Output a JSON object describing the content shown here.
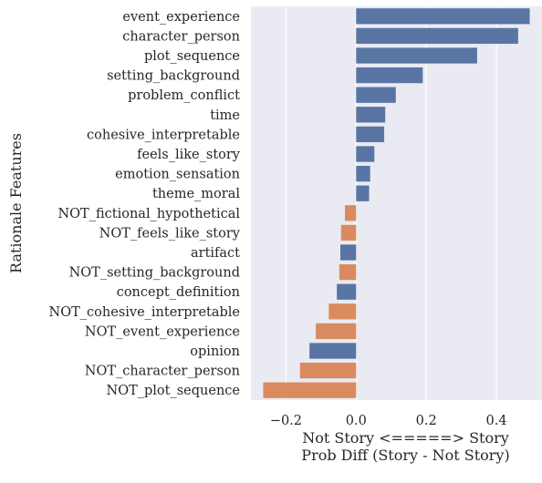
{
  "chart_data": {
    "type": "bar",
    "orientation": "horizontal",
    "xlabel_line1": "Not Story <=====> Story",
    "xlabel_line2": "Prob Diff (Story - Not Story)",
    "ylabel": "Rationale Features",
    "xlim": [
      -0.3,
      0.53
    ],
    "xticks": [
      -0.2,
      0.0,
      0.2,
      0.4
    ],
    "xtick_labels": [
      "−0.2",
      "0.0",
      "0.2",
      "0.4"
    ],
    "grid": true,
    "colors": {
      "blue": "#5875a4",
      "orange": "#d98b5f",
      "background": "#eaeaf2",
      "grid": "#ffffff"
    },
    "categories": [
      "event_experience",
      "character_person",
      "plot_sequence",
      "setting_background",
      "problem_conflict",
      "time",
      "cohesive_interpretable",
      "feels_like_story",
      "emotion_sensation",
      "theme_moral",
      "NOT_fictional_hypothetical",
      "NOT_feels_like_story",
      "artifact",
      "NOT_setting_background",
      "concept_definition",
      "NOT_cohesive_interpretable",
      "NOT_event_experience",
      "opinion",
      "NOT_character_person",
      "NOT_plot_sequence"
    ],
    "values": [
      0.495,
      0.462,
      0.345,
      0.19,
      0.113,
      0.083,
      0.08,
      0.052,
      0.04,
      0.037,
      -0.032,
      -0.043,
      -0.045,
      -0.048,
      -0.055,
      -0.078,
      -0.115,
      -0.133,
      -0.16,
      -0.265
    ],
    "bar_colors": [
      "blue",
      "blue",
      "blue",
      "blue",
      "blue",
      "blue",
      "blue",
      "blue",
      "blue",
      "blue",
      "orange",
      "orange",
      "blue",
      "orange",
      "blue",
      "orange",
      "orange",
      "blue",
      "orange",
      "orange"
    ]
  }
}
